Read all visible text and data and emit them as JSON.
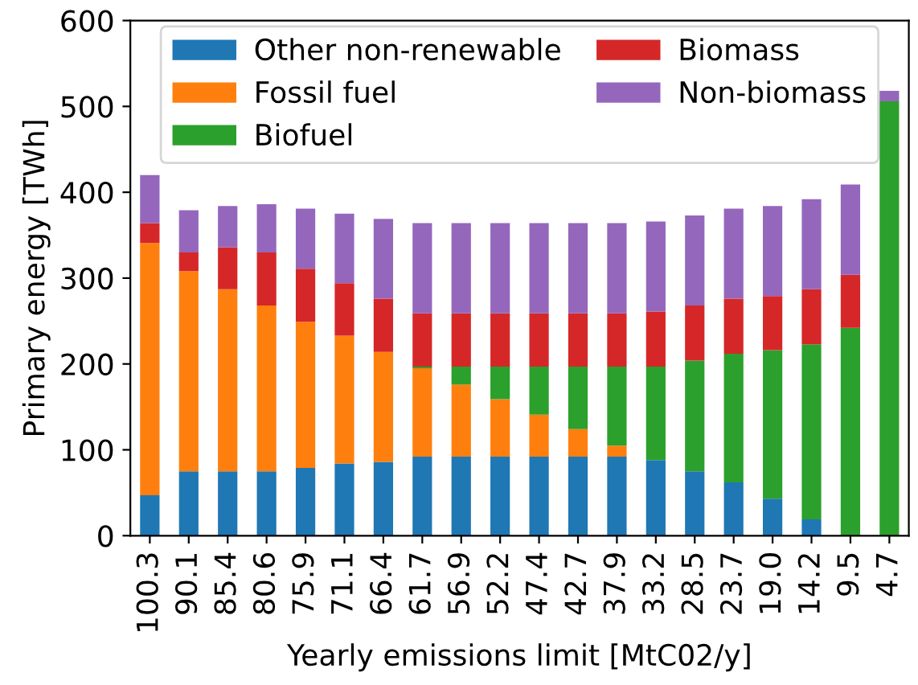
{
  "chart_data": {
    "type": "bar",
    "stacked": true,
    "xlabel": "Yearly emissions limit [MtC02/y]",
    "ylabel": "Primary energy [TWh]",
    "categories": [
      "100.3",
      "90.1",
      "85.4",
      "80.6",
      "75.9",
      "71.1",
      "66.4",
      "61.7",
      "56.9",
      "52.2",
      "47.4",
      "42.7",
      "37.9",
      "33.2",
      "28.5",
      "23.7",
      "19.0",
      "14.2",
      "9.5",
      "4.7"
    ],
    "series": [
      {
        "name": "Other non-renewable",
        "color": "#1f77b4",
        "values": [
          47,
          75,
          75,
          75,
          79,
          84,
          86,
          92,
          92,
          92,
          92,
          92,
          92,
          88,
          75,
          62,
          43,
          19,
          0,
          0
        ]
      },
      {
        "name": "Fossil fuel",
        "color": "#ff7f0e",
        "values": [
          294,
          233,
          212,
          193,
          170,
          149,
          128,
          103,
          84,
          67,
          49,
          32,
          13,
          0,
          0,
          0,
          0,
          0,
          0,
          0
        ]
      },
      {
        "name": "Biofuel",
        "color": "#2ca02c",
        "values": [
          0,
          0,
          0,
          0,
          0,
          0,
          0,
          2,
          21,
          38,
          56,
          73,
          92,
          109,
          129,
          150,
          173,
          204,
          242,
          506
        ]
      },
      {
        "name": "Biomass",
        "color": "#d62728",
        "values": [
          23,
          22,
          49,
          62,
          62,
          61,
          62,
          62,
          62,
          62,
          62,
          62,
          62,
          64,
          64,
          64,
          63,
          64,
          62,
          0
        ]
      },
      {
        "name": "Non-biomass",
        "color": "#9467bd",
        "values": [
          56,
          49,
          48,
          56,
          70,
          81,
          93,
          105,
          105,
          105,
          105,
          105,
          105,
          105,
          105,
          105,
          105,
          105,
          105,
          12
        ]
      }
    ],
    "ylim": [
      0,
      600
    ],
    "yticks": [
      0,
      100,
      200,
      300,
      400,
      500,
      600
    ],
    "legend": "top",
    "grid": false
  }
}
